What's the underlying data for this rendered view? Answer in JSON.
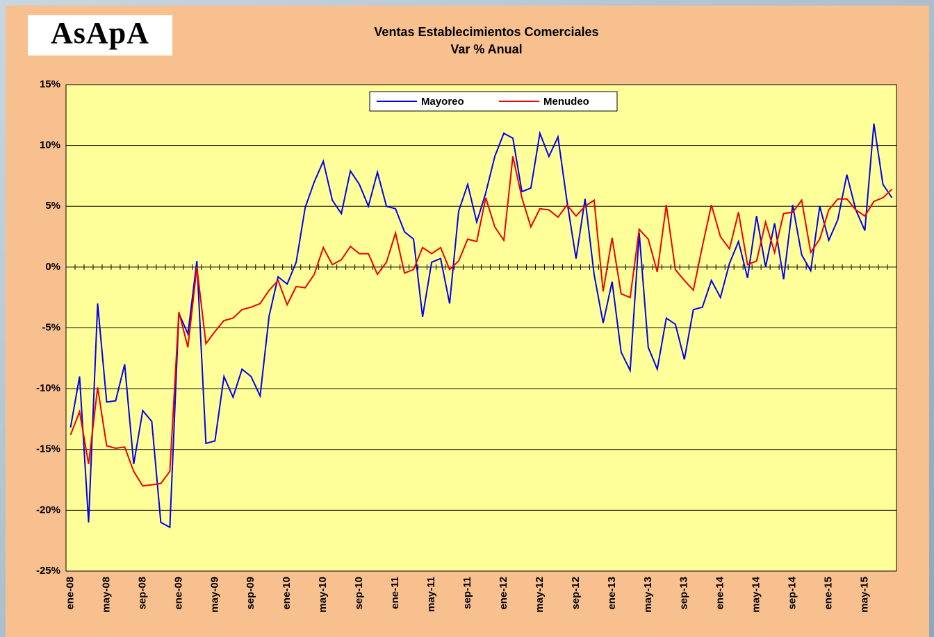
{
  "logo": "AsApA",
  "chart_data": {
    "type": "line",
    "title": "Ventas Establecimientos Comerciales",
    "subtitle": "Var % Anual",
    "categories": [
      "ene-08",
      null,
      null,
      null,
      "may-08",
      null,
      null,
      null,
      "sep-08",
      null,
      null,
      null,
      "ene-09",
      null,
      null,
      null,
      "may-09",
      null,
      null,
      null,
      "sep-09",
      null,
      null,
      null,
      "ene-10",
      null,
      null,
      null,
      "may-10",
      null,
      null,
      null,
      "sep-10",
      null,
      null,
      null,
      "ene-11",
      null,
      null,
      null,
      "may-11",
      null,
      null,
      null,
      "sep-11",
      null,
      null,
      null,
      "ene-12",
      null,
      null,
      null,
      "may-12",
      null,
      null,
      null,
      "sep-12",
      null,
      null,
      null,
      "ene-13",
      null,
      null,
      null,
      "may-13",
      null,
      null,
      null,
      "sep-13",
      null,
      null,
      null,
      "ene-14",
      null,
      null,
      null,
      "may-14",
      null,
      null,
      null,
      "sep-14",
      null,
      null,
      null,
      "ene-15",
      null,
      null,
      null,
      "may-15",
      null,
      null,
      null
    ],
    "series": [
      {
        "name": "Mayoreo",
        "color": "#0000ee",
        "values": [
          -13.2,
          -9.0,
          -21.0,
          -3.0,
          -11.1,
          -11.0,
          -8.0,
          -16.2,
          -11.8,
          -12.7,
          -21.0,
          -21.4,
          -3.8,
          -5.5,
          0.5,
          -14.5,
          -14.3,
          -9.0,
          -10.7,
          -8.4,
          -9.0,
          -10.6,
          -4.0,
          -0.8,
          -1.4,
          0.4,
          4.9,
          7.0,
          8.7,
          5.5,
          4.4,
          7.9,
          6.8,
          5.0,
          7.8,
          5.0,
          4.8,
          2.9,
          2.3,
          -4.1,
          0.4,
          0.7,
          -3.0,
          4.6,
          6.8,
          3.7,
          6.1,
          9.1,
          11.0,
          10.6,
          6.2,
          6.5,
          11.0,
          9.1,
          10.7,
          5.4,
          0.7,
          5.6,
          -0.6,
          -4.6,
          -1.2,
          -7.0,
          -8.5,
          2.8,
          -6.6,
          -8.4,
          -4.2,
          -4.7,
          -7.6,
          -3.5,
          -3.3,
          -1.1,
          -2.5,
          0.3,
          2.1,
          -0.9,
          4.2,
          0.0,
          3.6,
          -1.0,
          5.1,
          1.0,
          -0.3,
          5.0,
          2.2,
          3.9,
          7.6,
          4.7,
          3.0,
          11.8,
          6.8,
          5.7
        ]
      },
      {
        "name": "Menudeo",
        "color": "#ee0000",
        "values": [
          -13.8,
          -11.9,
          -16.2,
          -9.9,
          -14.7,
          -14.9,
          -14.8,
          -16.8,
          -18.0,
          -17.9,
          -17.8,
          -16.8,
          -3.7,
          -6.6,
          0.0,
          -6.3,
          -5.3,
          -4.4,
          -4.2,
          -3.5,
          -3.3,
          -3.0,
          -1.9,
          -1.1,
          -3.1,
          -1.6,
          -1.7,
          -0.6,
          1.6,
          0.2,
          0.6,
          1.7,
          1.1,
          1.1,
          -0.6,
          0.4,
          2.8,
          -0.5,
          -0.2,
          1.6,
          1.1,
          1.6,
          -0.2,
          0.5,
          2.3,
          2.1,
          5.7,
          3.3,
          2.2,
          9.1,
          5.7,
          3.3,
          4.8,
          4.7,
          4.1,
          5.1,
          4.2,
          5.0,
          5.5,
          -2.0,
          2.4,
          -2.2,
          -2.5,
          3.1,
          2.3,
          -0.4,
          5.1,
          -0.2,
          -1.1,
          -1.9,
          1.7,
          5.1,
          2.5,
          1.5,
          4.5,
          0.2,
          0.5,
          3.7,
          1.2,
          4.4,
          4.5,
          5.5,
          1.2,
          2.3,
          4.7,
          5.6,
          5.6,
          4.7,
          4.2,
          5.4,
          5.7,
          6.4
        ]
      }
    ],
    "ylim": [
      -25,
      15
    ],
    "yticks": [
      {
        "value": -25,
        "label": "-25%"
      },
      {
        "value": -20,
        "label": "-20%"
      },
      {
        "value": -15,
        "label": "-15%"
      },
      {
        "value": -10,
        "label": "-10%"
      },
      {
        "value": -5,
        "label": "-5%"
      },
      {
        "value": 0,
        "label": "0%"
      },
      {
        "value": 5,
        "label": "5%"
      },
      {
        "value": 10,
        "label": "10%"
      },
      {
        "value": 15,
        "label": "15%"
      }
    ],
    "grid": true,
    "legend": "top"
  }
}
